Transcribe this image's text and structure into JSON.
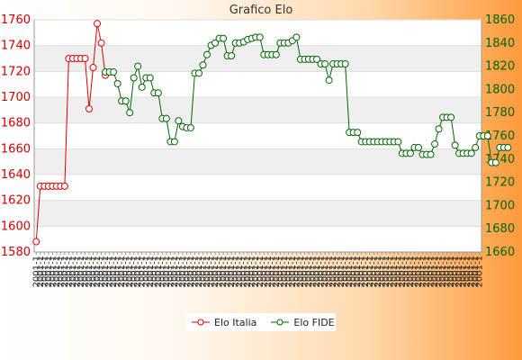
{
  "chart_data": {
    "type": "line",
    "title": "Grafico Elo",
    "xlabel": "",
    "ylabel_left": "",
    "ylabel_right": "",
    "left_axis": {
      "ylim": [
        1580,
        1760
      ],
      "ticks": [
        1580,
        1600,
        1620,
        1640,
        1660,
        1680,
        1700,
        1720,
        1740,
        1760
      ],
      "color": "#cc0000"
    },
    "right_axis": {
      "ylim": [
        1660,
        1860
      ],
      "ticks": [
        1660,
        1680,
        1700,
        1720,
        1740,
        1760,
        1780,
        1800,
        1820,
        1840,
        1860
      ],
      "color": "#006600"
    },
    "grid": true,
    "legend_position": "bottom",
    "x_tick_count": 110,
    "x_tick_label": "2001-1",
    "series": [
      {
        "name": "Elo Italia",
        "axis": "left",
        "color": "#dd0000",
        "start_index": 0,
        "values": [
          1588,
          1631,
          1631,
          1631,
          1631,
          1631,
          1631,
          1631,
          1730,
          1730,
          1730,
          1730,
          1730,
          1691,
          1723,
          1757,
          1742,
          1717
        ]
      },
      {
        "name": "Elo FIDE",
        "axis": "right",
        "color": "#006600",
        "start_index": 17,
        "values": [
          1815,
          1815,
          1815,
          1805,
          1790,
          1790,
          1780,
          1810,
          1820,
          1802,
          1810,
          1810,
          1797,
          1797,
          1775,
          1775,
          1755,
          1755,
          1773,
          1768,
          1767,
          1767,
          1814,
          1814,
          1821,
          1830,
          1838,
          1840,
          1844,
          1844,
          1829,
          1829,
          1840,
          1840,
          1841,
          1843,
          1844,
          1845,
          1845,
          1830,
          1830,
          1830,
          1830,
          1840,
          1840,
          1840,
          1842,
          1845,
          1826,
          1826,
          1826,
          1826,
          1826,
          1822,
          1822,
          1808,
          1822,
          1822,
          1822,
          1822,
          1763,
          1763,
          1763,
          1755,
          1755,
          1755,
          1755,
          1755,
          1755,
          1755,
          1755,
          1755,
          1755,
          1745,
          1745,
          1745,
          1750,
          1750,
          1744,
          1744,
          1744,
          1753,
          1766,
          1776,
          1776,
          1776,
          1752,
          1745,
          1745,
          1745,
          1745,
          1750,
          1760,
          1760,
          1760,
          1737,
          1737,
          1750,
          1750,
          1750
        ]
      }
    ]
  }
}
